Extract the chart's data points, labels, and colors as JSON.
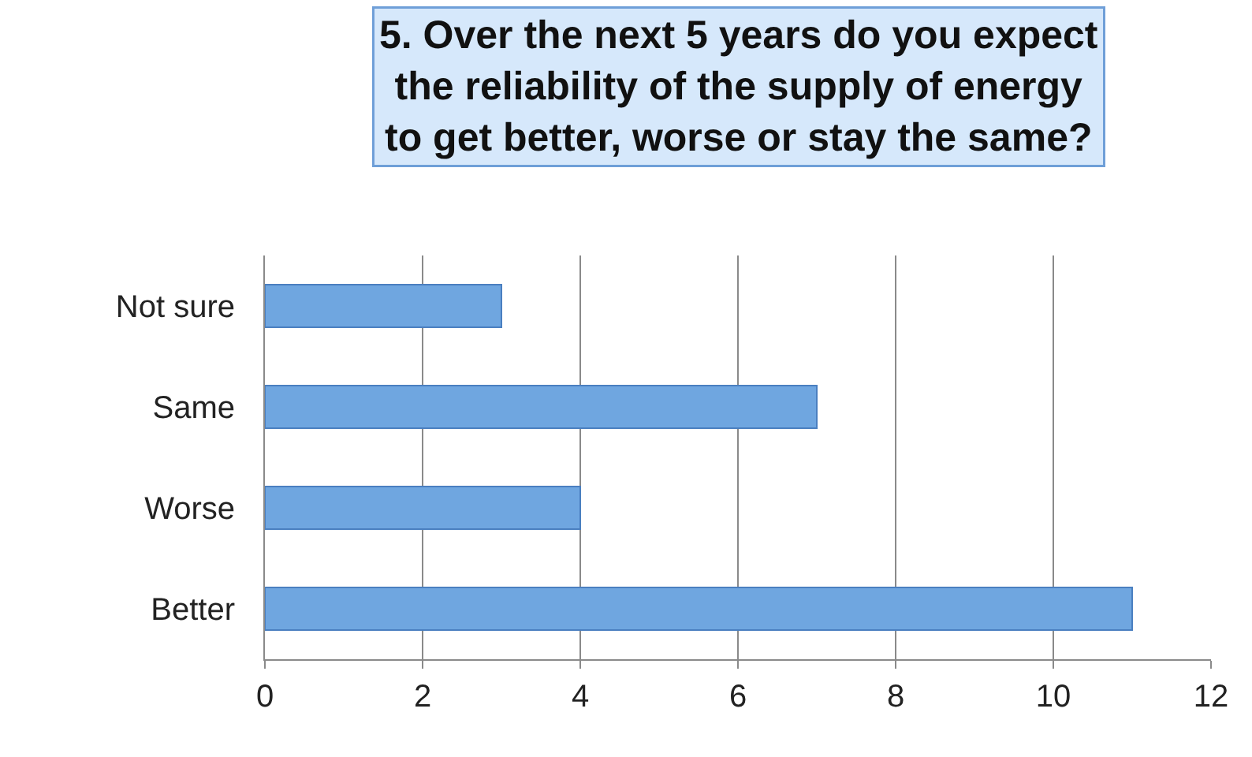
{
  "chart_data": {
    "type": "bar",
    "orientation": "horizontal",
    "title": "5. Over the next 5 years do you expect\nthe reliability of the supply of energy\nto get better, worse or stay the same?",
    "categories": [
      "Not sure",
      "Same",
      "Worse",
      "Better"
    ],
    "values": [
      3,
      7,
      4,
      11
    ],
    "color": "#6fa6e0",
    "xlim": [
      0,
      12
    ],
    "xticks": [
      0,
      2,
      4,
      6,
      8,
      10,
      12
    ],
    "grid": "x",
    "legend": false
  }
}
